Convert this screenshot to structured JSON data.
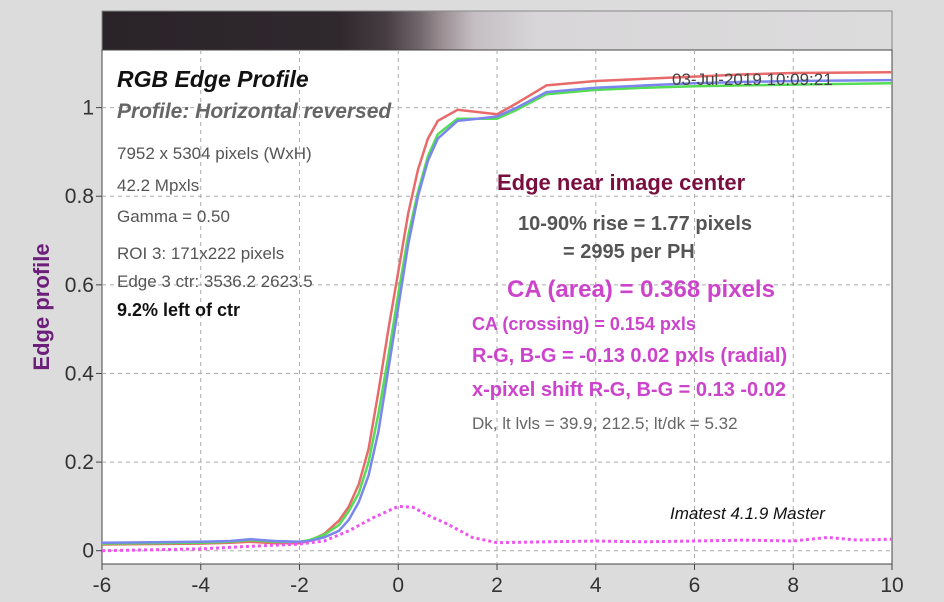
{
  "chart_data": {
    "type": "line",
    "title": "RGB Edge Profile",
    "subtitle": "Profile: Horizontal reversed",
    "timestamp": "03-Jul-2019 10:09:21",
    "ylabel": "Edge profile",
    "xlim": [
      -6,
      10
    ],
    "ylim": [
      -0.03,
      1.13
    ],
    "xticks": [
      -6,
      -4,
      -2,
      0,
      2,
      4,
      6,
      8,
      10
    ],
    "yticks": [
      0,
      0.2,
      0.4,
      0.6,
      0.8,
      1
    ],
    "grid": true,
    "series": [
      {
        "color": "#e86a6a",
        "points": [
          [
            -6,
            0.014
          ],
          [
            -4,
            0.016
          ],
          [
            -3.4,
            0.018
          ],
          [
            -3,
            0.02
          ],
          [
            -2.5,
            0.017
          ],
          [
            -2,
            0.017
          ],
          [
            -1.8,
            0.022
          ],
          [
            -1.5,
            0.038
          ],
          [
            -1.2,
            0.068
          ],
          [
            -1,
            0.1
          ],
          [
            -0.8,
            0.15
          ],
          [
            -0.6,
            0.23
          ],
          [
            -0.4,
            0.36
          ],
          [
            -0.2,
            0.5
          ],
          [
            0,
            0.63
          ],
          [
            0.2,
            0.76
          ],
          [
            0.4,
            0.86
          ],
          [
            0.6,
            0.93
          ],
          [
            0.8,
            0.97
          ],
          [
            1.2,
            0.995
          ],
          [
            1.6,
            0.99
          ],
          [
            2,
            0.985
          ],
          [
            2.4,
            1.01
          ],
          [
            3,
            1.05
          ],
          [
            4,
            1.06
          ],
          [
            5,
            1.065
          ],
          [
            6,
            1.07
          ],
          [
            7,
            1.075
          ],
          [
            8,
            1.078
          ],
          [
            10,
            1.08
          ]
        ]
      },
      {
        "color": "#55dd55",
        "points": [
          [
            -6,
            0.016
          ],
          [
            -4,
            0.018
          ],
          [
            -3.4,
            0.02
          ],
          [
            -3,
            0.024
          ],
          [
            -2.5,
            0.02
          ],
          [
            -2,
            0.02
          ],
          [
            -1.8,
            0.024
          ],
          [
            -1.5,
            0.036
          ],
          [
            -1.2,
            0.058
          ],
          [
            -1,
            0.09
          ],
          [
            -0.8,
            0.13
          ],
          [
            -0.6,
            0.2
          ],
          [
            -0.4,
            0.31
          ],
          [
            -0.2,
            0.44
          ],
          [
            0,
            0.58
          ],
          [
            0.2,
            0.71
          ],
          [
            0.4,
            0.81
          ],
          [
            0.6,
            0.89
          ],
          [
            0.8,
            0.94
          ],
          [
            1.2,
            0.975
          ],
          [
            1.6,
            0.975
          ],
          [
            2,
            0.975
          ],
          [
            2.4,
            0.995
          ],
          [
            3,
            1.03
          ],
          [
            4,
            1.04
          ],
          [
            5,
            1.045
          ],
          [
            6,
            1.048
          ],
          [
            7,
            1.05
          ],
          [
            8,
            1.052
          ],
          [
            10,
            1.055
          ]
        ]
      },
      {
        "color": "#7a86ee",
        "points": [
          [
            -6,
            0.018
          ],
          [
            -4,
            0.02
          ],
          [
            -3.4,
            0.022
          ],
          [
            -3,
            0.026
          ],
          [
            -2.5,
            0.022
          ],
          [
            -2,
            0.02
          ],
          [
            -1.8,
            0.022
          ],
          [
            -1.5,
            0.03
          ],
          [
            -1.2,
            0.045
          ],
          [
            -1,
            0.07
          ],
          [
            -0.8,
            0.11
          ],
          [
            -0.6,
            0.17
          ],
          [
            -0.4,
            0.27
          ],
          [
            -0.2,
            0.41
          ],
          [
            0,
            0.55
          ],
          [
            0.2,
            0.69
          ],
          [
            0.4,
            0.8
          ],
          [
            0.6,
            0.88
          ],
          [
            0.8,
            0.93
          ],
          [
            1.2,
            0.97
          ],
          [
            1.6,
            0.975
          ],
          [
            2,
            0.98
          ],
          [
            2.4,
            1.0
          ],
          [
            3,
            1.035
          ],
          [
            4,
            1.045
          ],
          [
            5,
            1.05
          ],
          [
            6,
            1.055
          ],
          [
            7,
            1.058
          ],
          [
            8,
            1.06
          ],
          [
            10,
            1.062
          ]
        ]
      },
      {
        "color": "#ee55ee",
        "dashed": true,
        "points": [
          [
            -6,
            0
          ],
          [
            -4,
            0.004
          ],
          [
            -3,
            0.01
          ],
          [
            -2,
            0.015
          ],
          [
            -1.5,
            0.022
          ],
          [
            -1,
            0.045
          ],
          [
            -0.5,
            0.075
          ],
          [
            0,
            0.1
          ],
          [
            0.3,
            0.098
          ],
          [
            0.6,
            0.08
          ],
          [
            1,
            0.06
          ],
          [
            1.5,
            0.03
          ],
          [
            2,
            0.018
          ],
          [
            3,
            0.02
          ],
          [
            4,
            0.022
          ],
          [
            5,
            0.02
          ],
          [
            6,
            0.022
          ],
          [
            7,
            0.024
          ],
          [
            8,
            0.022
          ],
          [
            8.7,
            0.03
          ],
          [
            9.3,
            0.024
          ],
          [
            10,
            0.026
          ]
        ]
      }
    ]
  },
  "header": {
    "title": "RGB Edge Profile",
    "subtitle": "Profile: Horizontal reversed",
    "timestamp": "03-Jul-2019 10:09:21"
  },
  "info": {
    "dims": "7952 x 5304 pixels (WxH)",
    "mpxls": "42.2 Mpxls",
    "gamma": "Gamma = 0.50",
    "roi": "ROI 3: 171x222 pixels",
    "edge": "Edge 3 ctr: 3536.2  2623.5",
    "pos": "9.2% left of ctr"
  },
  "results": {
    "heading": "Edge near image center",
    "rise1": "10-90% rise = 1.77 pixels",
    "rise2": "= 2995 per PH",
    "ca_area": "CA (area) = 0.368 pixels",
    "ca_cross": "CA (crossing) = 0.154 pxls",
    "rg_bg": "R-G, B-G = -0.13  0.02 pxls (radial)",
    "shift": "x-pixel shift R-G, B-G = 0.13  -0.02",
    "levels": "Dk, lt lvls = 39.9, 212.5;  lt/dk = 5.32"
  },
  "footer": {
    "version": "Imatest 4.1.9  Master"
  },
  "axis": {
    "ylabel": "Edge profile"
  }
}
